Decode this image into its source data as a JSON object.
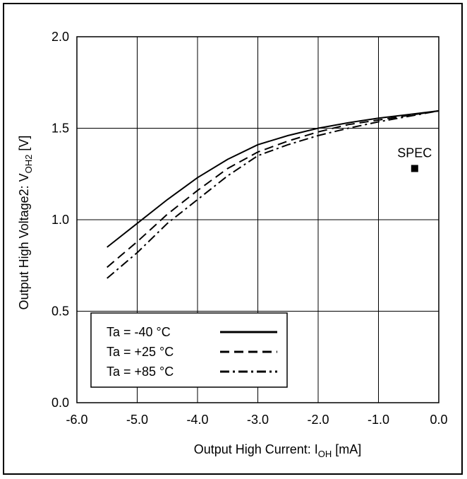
{
  "chart_data": {
    "type": "line",
    "xlabel_main": "Output High Current: I",
    "xlabel_sub": "OH",
    "xlabel_unit": " [mA]",
    "ylabel_main": "Output High Voltage2: V",
    "ylabel_sub": "OH2",
    "ylabel_unit": " [V]",
    "xlim": [
      -6.0,
      0.0
    ],
    "ylim": [
      0.0,
      2.0
    ],
    "xticks": [
      -6.0,
      -5.0,
      -4.0,
      -3.0,
      -2.0,
      -1.0,
      0.0
    ],
    "xtick_labels": [
      "-6.0",
      "-5.0",
      "-4.0",
      "-3.0",
      "-2.0",
      "-1.0",
      "0.0"
    ],
    "yticks": [
      0.0,
      0.5,
      1.0,
      1.5,
      2.0
    ],
    "ytick_labels": [
      "0.0",
      "0.5",
      "1.0",
      "1.5",
      "2.0"
    ],
    "grid": true,
    "legend_position": "bottom-left",
    "series": [
      {
        "name": "Ta = -40 °C",
        "dash": "solid",
        "x": [
          -5.5,
          -5.0,
          -4.5,
          -4.0,
          -3.5,
          -3.0,
          -2.5,
          -2.0,
          -1.5,
          -1.0,
          -0.5,
          0.0
        ],
        "y": [
          0.85,
          0.98,
          1.11,
          1.23,
          1.33,
          1.41,
          1.46,
          1.5,
          1.53,
          1.555,
          1.575,
          1.595
        ]
      },
      {
        "name": "Ta = +25 °C",
        "dash": "dashed",
        "x": [
          -5.5,
          -5.0,
          -4.5,
          -4.0,
          -3.5,
          -3.0,
          -2.5,
          -2.0,
          -1.5,
          -1.0,
          -0.5,
          0.0
        ],
        "y": [
          0.74,
          0.88,
          1.03,
          1.16,
          1.28,
          1.37,
          1.43,
          1.48,
          1.52,
          1.545,
          1.57,
          1.595
        ]
      },
      {
        "name": "Ta = +85 °C",
        "dash": "dashdot",
        "x": [
          -5.5,
          -5.0,
          -4.5,
          -4.0,
          -3.5,
          -3.0,
          -2.5,
          -2.0,
          -1.5,
          -1.0,
          -0.5,
          0.0
        ],
        "y": [
          0.68,
          0.82,
          0.98,
          1.11,
          1.24,
          1.35,
          1.41,
          1.46,
          1.5,
          1.535,
          1.565,
          1.595
        ]
      }
    ],
    "markers": [
      {
        "label": "SPEC",
        "x": -0.4,
        "y": 1.28
      }
    ]
  }
}
